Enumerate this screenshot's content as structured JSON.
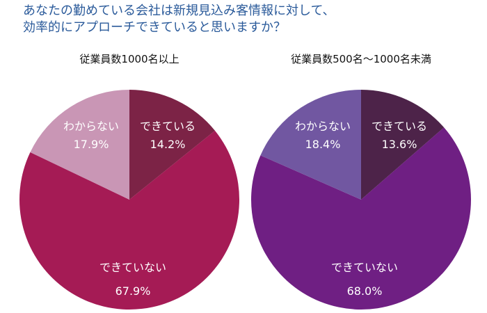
{
  "title_lines": [
    "あなたの勤めている会社は新規見込み客情報に対して、",
    "効率的にアプローチできていると思いますか？"
  ],
  "chart_data": [
    {
      "type": "pie",
      "title": "従業員数1000名以上",
      "categories": [
        "できている",
        "できていない",
        "わからない"
      ],
      "values": [
        14.2,
        67.9,
        17.9
      ],
      "value_labels": [
        "14.2%",
        "67.9%",
        "17.9%"
      ],
      "colors": [
        "#7c2346",
        "#a51b55",
        "#c996b5"
      ],
      "start": "top",
      "direction": "clockwise"
    },
    {
      "type": "pie",
      "title": "従業員数500名～1000名未満",
      "categories": [
        "できている",
        "できていない",
        "わからない"
      ],
      "values": [
        13.6,
        68.0,
        18.4
      ],
      "value_labels": [
        "13.6%",
        "68.0%",
        "18.4%"
      ],
      "colors": [
        "#4d2349",
        "#6f1f83",
        "#7157a1"
      ],
      "start": "top",
      "direction": "clockwise"
    }
  ]
}
